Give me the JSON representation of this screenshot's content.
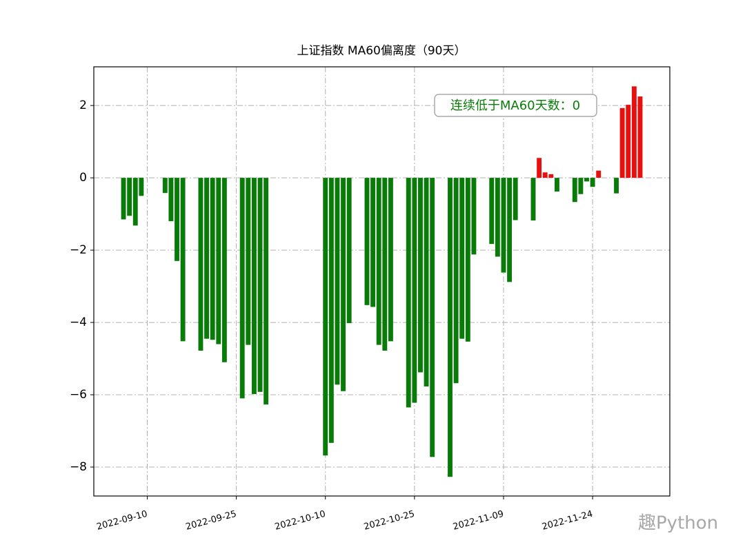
{
  "chart_data": {
    "type": "bar",
    "title": "上证指数 MA60偏离度（90天）",
    "annotation": "连续低于MA60天数：0",
    "watermark": "趣Python",
    "x": [
      "2022-09-06",
      "2022-09-07",
      "2022-09-08",
      "2022-09-09",
      "2022-09-13",
      "2022-09-14",
      "2022-09-15",
      "2022-09-16",
      "2022-09-19",
      "2022-09-20",
      "2022-09-21",
      "2022-09-22",
      "2022-09-23",
      "2022-09-26",
      "2022-09-27",
      "2022-09-28",
      "2022-09-29",
      "2022-09-30",
      "2022-10-10",
      "2022-10-11",
      "2022-10-12",
      "2022-10-13",
      "2022-10-14",
      "2022-10-17",
      "2022-10-18",
      "2022-10-19",
      "2022-10-20",
      "2022-10-21",
      "2022-10-24",
      "2022-10-25",
      "2022-10-26",
      "2022-10-27",
      "2022-10-28",
      "2022-10-31",
      "2022-11-01",
      "2022-11-02",
      "2022-11-03",
      "2022-11-04",
      "2022-11-07",
      "2022-11-08",
      "2022-11-09",
      "2022-11-10",
      "2022-11-11",
      "2022-11-14",
      "2022-11-15",
      "2022-11-16",
      "2022-11-17",
      "2022-11-18",
      "2022-11-21",
      "2022-11-22",
      "2022-11-23",
      "2022-11-24",
      "2022-11-25",
      "2022-11-28",
      "2022-11-29",
      "2022-11-30",
      "2022-12-01",
      "2022-12-02"
    ],
    "values": [
      -1.15,
      -1.05,
      -1.32,
      -0.5,
      -0.42,
      -1.2,
      -2.3,
      -4.52,
      -4.78,
      -4.45,
      -4.48,
      -4.6,
      -5.1,
      -6.1,
      -4.62,
      -5.98,
      -5.92,
      -6.27,
      -7.68,
      -7.33,
      -5.72,
      -5.9,
      -4.02,
      -3.52,
      -3.57,
      -4.62,
      -4.78,
      -4.52,
      -6.35,
      -6.22,
      -5.38,
      -5.77,
      -7.72,
      -8.27,
      -5.68,
      -4.45,
      -4.53,
      -2.12,
      -1.83,
      -2.18,
      -2.62,
      -2.88,
      -1.17,
      -1.18,
      0.55,
      0.15,
      0.1,
      -0.38,
      -0.67,
      -0.45,
      -0.1,
      -0.25,
      0.2,
      -0.43,
      1.93,
      2.02,
      2.53,
      2.25
    ],
    "up_color": "#e8100f",
    "down_color": "#087b08",
    "xlim": [
      "2022-09-01",
      "2022-12-07"
    ],
    "xticks": [
      "2022-09-10",
      "2022-09-25",
      "2022-10-10",
      "2022-10-25",
      "2022-11-09",
      "2022-11-24"
    ],
    "ylim": [
      -8.8,
      3.07
    ],
    "yticks": [
      {
        "value": -8,
        "label": "−8"
      },
      {
        "value": -6,
        "label": "−6"
      },
      {
        "value": -4,
        "label": "−4"
      },
      {
        "value": -2,
        "label": "−2"
      },
      0,
      2
    ],
    "grid": true
  }
}
